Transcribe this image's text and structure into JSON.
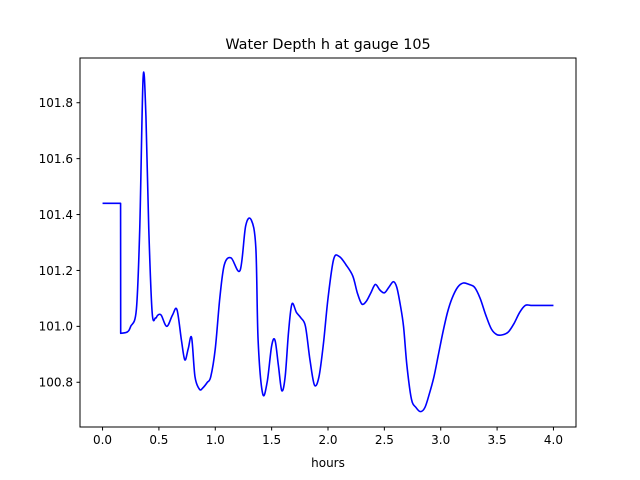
{
  "chart_data": {
    "type": "line",
    "title": "Water Depth h at gauge 105",
    "xlabel": "hours",
    "ylabel": "",
    "xlim": [
      -0.2,
      4.2
    ],
    "ylim": [
      100.64,
      101.96
    ],
    "xticks": [
      {
        "value": 0.0,
        "label": "0.0"
      },
      {
        "value": 0.5,
        "label": "0.5"
      },
      {
        "value": 1.0,
        "label": "1.0"
      },
      {
        "value": 1.5,
        "label": "1.5"
      },
      {
        "value": 2.0,
        "label": "2.0"
      },
      {
        "value": 2.5,
        "label": "2.5"
      },
      {
        "value": 3.0,
        "label": "3.0"
      },
      {
        "value": 3.5,
        "label": "3.5"
      },
      {
        "value": 4.0,
        "label": "4.0"
      }
    ],
    "yticks": [
      {
        "value": 100.8,
        "label": "100.8"
      },
      {
        "value": 101.0,
        "label": "101.0"
      },
      {
        "value": 101.2,
        "label": "101.2"
      },
      {
        "value": 101.4,
        "label": "101.4"
      },
      {
        "value": 101.6,
        "label": "101.6"
      },
      {
        "value": 101.8,
        "label": "101.8"
      }
    ],
    "grid": false,
    "series": [
      {
        "color": "#0000ff",
        "x": [
          0.0,
          0.16,
          0.161,
          0.22,
          0.25,
          0.3,
          0.33,
          0.36,
          0.385,
          0.41,
          0.44,
          0.47,
          0.49,
          0.52,
          0.57,
          0.62,
          0.66,
          0.7,
          0.73,
          0.76,
          0.79,
          0.82,
          0.86,
          0.89,
          0.93,
          0.96,
          1.0,
          1.04,
          1.08,
          1.14,
          1.22,
          1.27,
          1.32,
          1.36,
          1.38,
          1.42,
          1.46,
          1.5,
          1.53,
          1.56,
          1.59,
          1.62,
          1.65,
          1.68,
          1.72,
          1.76,
          1.8,
          1.84,
          1.88,
          1.92,
          1.96,
          2.0,
          2.05,
          2.1,
          2.16,
          2.22,
          2.26,
          2.3,
          2.34,
          2.38,
          2.42,
          2.46,
          2.5,
          2.54,
          2.58,
          2.61,
          2.64,
          2.67,
          2.7,
          2.74,
          2.78,
          2.82,
          2.86,
          2.9,
          2.94,
          2.98,
          3.02,
          3.06,
          3.1,
          3.15,
          3.2,
          3.25,
          3.3,
          3.35,
          3.4,
          3.45,
          3.5,
          3.55,
          3.6,
          3.65,
          3.7,
          3.75,
          3.8,
          3.85,
          3.9,
          3.95,
          4.0
        ],
        "y": [
          101.44,
          101.44,
          100.975,
          100.98,
          101.0,
          101.06,
          101.35,
          101.89,
          101.75,
          101.35,
          101.05,
          101.03,
          101.04,
          101.04,
          101.0,
          101.04,
          101.06,
          100.95,
          100.88,
          100.92,
          100.96,
          100.82,
          100.775,
          100.78,
          100.8,
          100.82,
          100.92,
          101.1,
          101.22,
          101.245,
          101.2,
          101.36,
          101.38,
          101.28,
          100.95,
          100.76,
          100.8,
          100.93,
          100.95,
          100.86,
          100.77,
          100.82,
          100.98,
          101.08,
          101.05,
          101.03,
          101.0,
          100.88,
          100.79,
          100.82,
          100.94,
          101.1,
          101.24,
          101.25,
          101.22,
          101.18,
          101.12,
          101.08,
          101.09,
          101.12,
          101.15,
          101.13,
          101.12,
          101.14,
          101.16,
          101.14,
          101.08,
          101.0,
          100.86,
          100.74,
          100.71,
          100.695,
          100.71,
          100.76,
          100.82,
          100.9,
          100.98,
          101.05,
          101.1,
          101.14,
          101.155,
          101.15,
          101.14,
          101.1,
          101.04,
          100.99,
          100.97,
          100.97,
          100.98,
          101.01,
          101.05,
          101.075,
          101.075,
          101.075,
          101.075,
          101.075,
          101.075
        ]
      }
    ]
  }
}
